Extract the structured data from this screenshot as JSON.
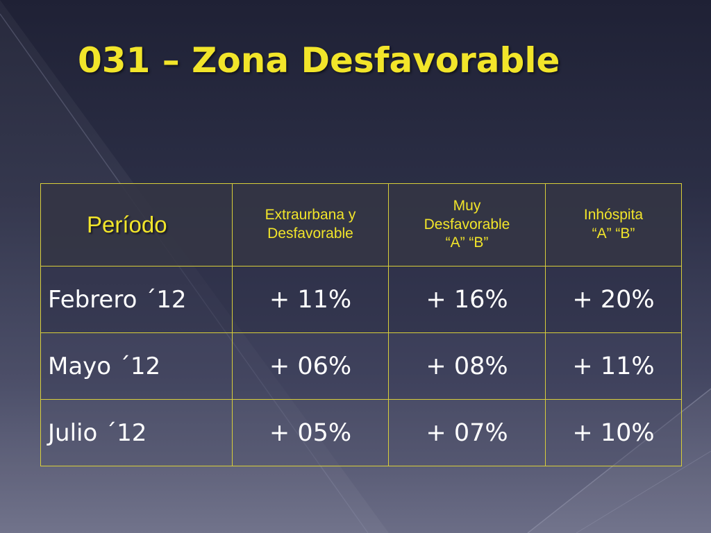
{
  "title": "031 – Zona Desfavorable",
  "table": {
    "headers": {
      "period": "Período",
      "col1": [
        "Extraurbana y",
        "Desfavorable"
      ],
      "col2": [
        "Muy",
        "Desfavorable",
        "“A”  “B”"
      ],
      "col3": [
        "Inhóspita",
        "“A”  “B”"
      ]
    },
    "rows": [
      {
        "period": "Febrero ´12",
        "values": [
          "+ 11%",
          "+ 16%",
          "+ 20%"
        ]
      },
      {
        "period": "Mayo ´12",
        "values": [
          "+ 06%",
          "+ 08%",
          "+ 11%"
        ]
      },
      {
        "period": "Julio ´12",
        "values": [
          "+ 05%",
          "+ 07%",
          "+ 10%"
        ]
      }
    ]
  },
  "colors": {
    "title": "#f2e52a",
    "border": "#d9cf3a",
    "header_background": "#343544",
    "cell_text": "#ffffff"
  }
}
